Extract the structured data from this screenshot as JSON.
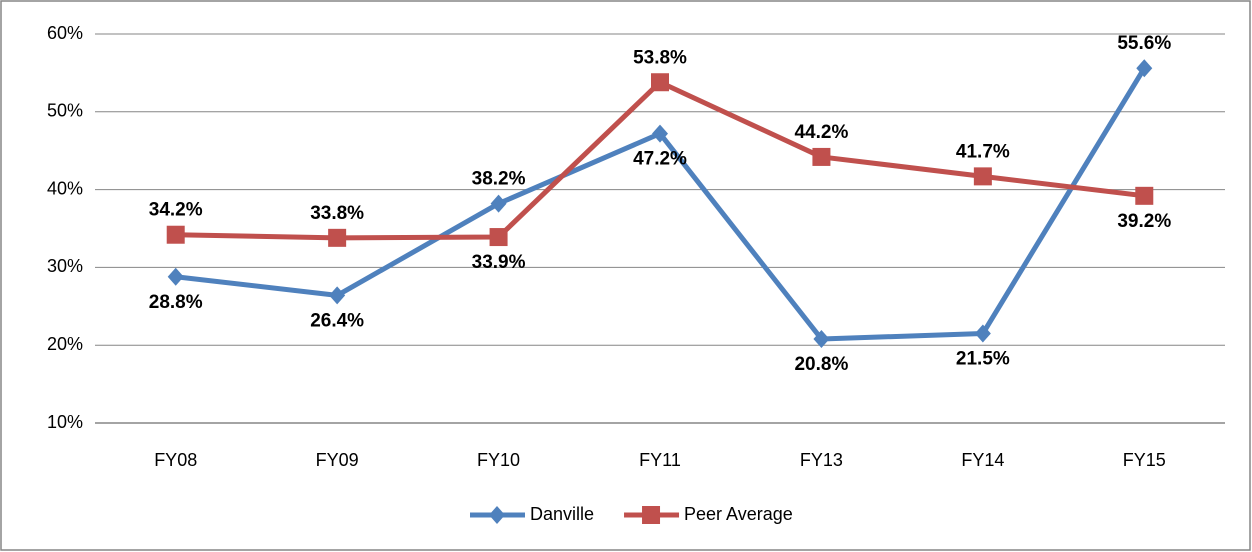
{
  "chart_data": {
    "type": "line",
    "categories": [
      "FY08",
      "FY09",
      "FY10",
      "FY11",
      "FY13",
      "FY14",
      "FY15"
    ],
    "series": [
      {
        "name": "Danville",
        "color": "#4f81bd",
        "marker": "diamond",
        "values": [
          28.8,
          26.4,
          38.2,
          47.2,
          20.8,
          21.5,
          55.6
        ],
        "value_labels": [
          "28.8%",
          "26.4%",
          "38.2%",
          "47.2%",
          "20.8%",
          "21.5%",
          "55.6%"
        ]
      },
      {
        "name": "Peer Average",
        "color": "#c0504d",
        "marker": "square",
        "values": [
          34.2,
          33.8,
          33.9,
          53.8,
          44.2,
          41.7,
          39.2
        ],
        "value_labels": [
          "34.2%",
          "33.8%",
          "33.9%",
          "53.8%",
          "44.2%",
          "41.7%",
          "39.2%"
        ]
      }
    ],
    "ylim": [
      10,
      60
    ],
    "yticks": [
      {
        "value": 10,
        "label": "10%"
      },
      {
        "value": 20,
        "label": "20%"
      },
      {
        "value": 30,
        "label": "30%"
      },
      {
        "value": 40,
        "label": "40%"
      },
      {
        "value": 50,
        "label": "50%"
      },
      {
        "value": 60,
        "label": "60%"
      }
    ],
    "grid": true,
    "legend": "bottom"
  }
}
